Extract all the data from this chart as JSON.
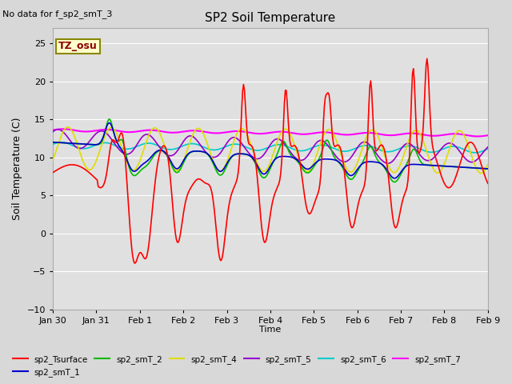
{
  "title": "SP2 Soil Temperature",
  "ylabel": "Soil Temperature (C)",
  "xlabel": "Time",
  "annotation_top_left": "No data for f_sp2_smT_3",
  "tz_label": "TZ_osu",
  "ylim": [
    -10,
    27
  ],
  "yticks": [
    -10,
    -5,
    0,
    5,
    10,
    15,
    20,
    25
  ],
  "background_color": "#d8d8d8",
  "plot_bg_color": "#e0e0e0",
  "series_colors": {
    "sp2_Tsurface": "#ff0000",
    "sp2_smT_1": "#0000cc",
    "sp2_smT_2": "#00bb00",
    "sp2_smT_4": "#dddd00",
    "sp2_smT_5": "#9900cc",
    "sp2_smT_6": "#00cccc",
    "sp2_smT_7": "#ff00ff"
  },
  "x_tick_labels": [
    "Jan 30",
    "Jan 31",
    "Feb 1",
    "Feb 2",
    "Feb 3",
    "Feb 4",
    "Feb 5",
    "Feb 6",
    "Feb 7",
    "Feb 8",
    "Feb 9"
  ],
  "figsize": [
    6.4,
    4.8
  ],
  "dpi": 100
}
